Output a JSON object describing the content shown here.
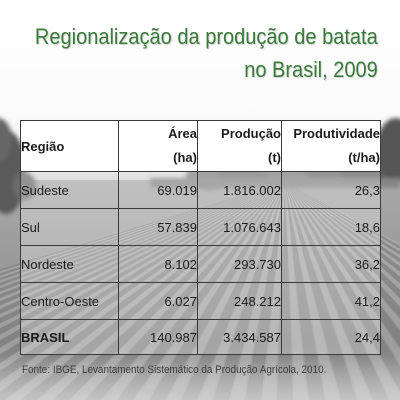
{
  "slide": {
    "title_line1": "Regionalização da produção de batata",
    "title_line2": "no Brasil, 2009",
    "source": "Fonte: IBGE, Levantamento Sistemático da Produção Agrícola, 2010."
  },
  "table": {
    "headers": {
      "region": "Região",
      "area": {
        "label": "Área",
        "unit": "(ha)"
      },
      "production": {
        "label": "Produção",
        "unit": "(t)"
      },
      "productivity": {
        "label": "Produtividade",
        "unit": "(t/ha)"
      }
    },
    "rows": [
      {
        "region": "Sudeste",
        "area": "69.019",
        "production": "1.816.002",
        "productivity": "26,3"
      },
      {
        "region": "Sul",
        "area": "57.839",
        "production": "1.076.643",
        "productivity": "18,6"
      },
      {
        "region": "Nordeste",
        "area": "8.102",
        "production": "293.730",
        "productivity": "36,2"
      },
      {
        "region": "Centro-Oeste",
        "area": "6.027",
        "production": "248.212",
        "productivity": "41,2"
      },
      {
        "region": "BRASIL",
        "area": "140.987",
        "production": "3.434.587",
        "productivity": "24,4"
      }
    ]
  },
  "colors": {
    "title": "#3a7a3a",
    "table_border": "#3a3a3a",
    "header_background": "#ffffff"
  }
}
